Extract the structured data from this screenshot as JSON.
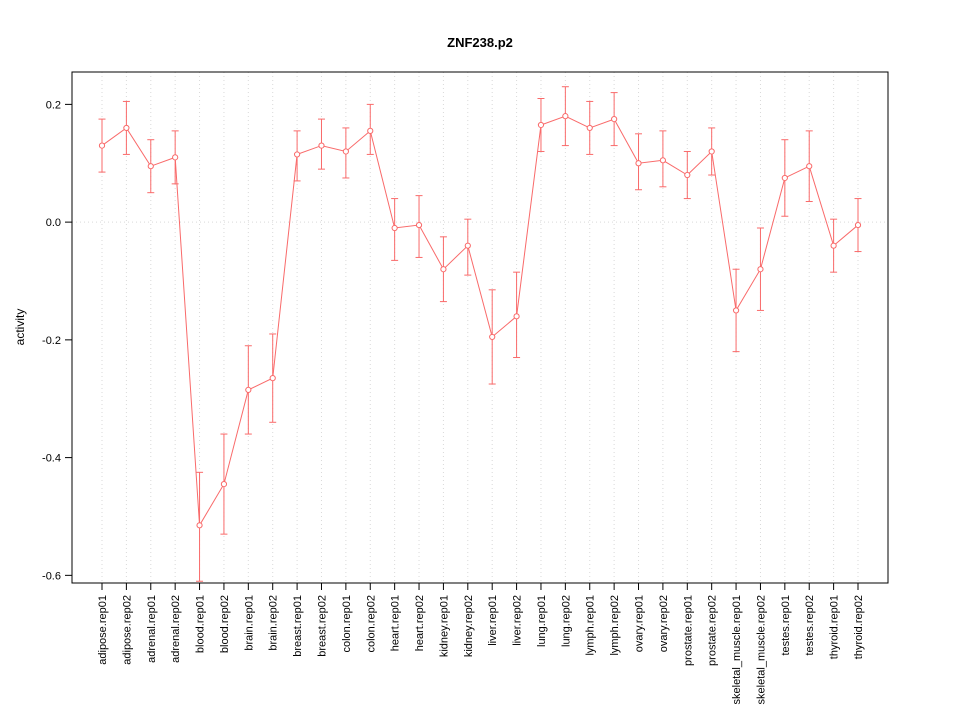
{
  "chart_data": {
    "type": "line",
    "title": "ZNF238.p2",
    "xlabel": "",
    "ylabel": "activity",
    "legend_position": "none",
    "marker": "open-circle",
    "grid": {
      "vertical_dotted": true,
      "zero_line_dotted": true,
      "horizontal_gridlines": false
    },
    "ylim": [
      -0.613,
      0.255
    ],
    "yticks": [
      0.2,
      0.0,
      -0.2,
      -0.4,
      -0.6
    ],
    "ytick_labels": [
      "0.2",
      "0.0",
      "-0.2",
      "-0.4",
      "-0.6"
    ],
    "colors": {
      "series": "#f96a6a",
      "grid": "#d9d9d9",
      "axis": "#000000",
      "background": "#ffffff",
      "marker_fill": "#ffffff"
    },
    "categories": [
      "adipose.rep01",
      "adipose.rep02",
      "adrenal.rep01",
      "adrenal.rep02",
      "blood.rep01",
      "blood.rep02",
      "brain.rep01",
      "brain.rep02",
      "breast.rep01",
      "breast.rep02",
      "colon.rep01",
      "colon.rep02",
      "heart.rep01",
      "heart.rep02",
      "kidney.rep01",
      "kidney.rep02",
      "liver.rep01",
      "liver.rep02",
      "lung.rep01",
      "lung.rep02",
      "lymph.rep01",
      "lymph.rep02",
      "ovary.rep01",
      "ovary.rep02",
      "prostate.rep01",
      "prostate.rep02",
      "skeletal_muscle.rep01",
      "skeletal_muscle.rep02",
      "testes.rep01",
      "testes.rep02",
      "thyroid.rep01",
      "thyroid.rep02"
    ],
    "series": [
      {
        "name": "activity",
        "values": [
          0.13,
          0.16,
          0.095,
          0.11,
          -0.515,
          -0.445,
          -0.285,
          -0.265,
          0.115,
          0.13,
          0.12,
          0.155,
          -0.01,
          -0.005,
          -0.08,
          -0.04,
          -0.195,
          -0.16,
          0.165,
          0.18,
          0.16,
          0.175,
          0.1,
          0.105,
          0.08,
          0.12,
          -0.15,
          -0.08,
          0.075,
          0.095,
          -0.04,
          -0.005
        ],
        "lower": [
          0.085,
          0.115,
          0.05,
          0.065,
          -0.61,
          -0.53,
          -0.36,
          -0.34,
          0.07,
          0.09,
          0.075,
          0.115,
          -0.065,
          -0.06,
          -0.135,
          -0.09,
          -0.275,
          -0.23,
          0.12,
          0.13,
          0.115,
          0.13,
          0.055,
          0.06,
          0.04,
          0.08,
          -0.22,
          -0.15,
          0.01,
          0.035,
          -0.085,
          -0.05
        ],
        "upper": [
          0.175,
          0.205,
          0.14,
          0.155,
          -0.425,
          -0.36,
          -0.21,
          -0.19,
          0.155,
          0.175,
          0.16,
          0.2,
          0.04,
          0.045,
          -0.025,
          0.005,
          -0.115,
          -0.085,
          0.21,
          0.23,
          0.205,
          0.22,
          0.15,
          0.155,
          0.12,
          0.16,
          -0.08,
          -0.01,
          0.14,
          0.155,
          0.005,
          0.04
        ]
      }
    ]
  }
}
